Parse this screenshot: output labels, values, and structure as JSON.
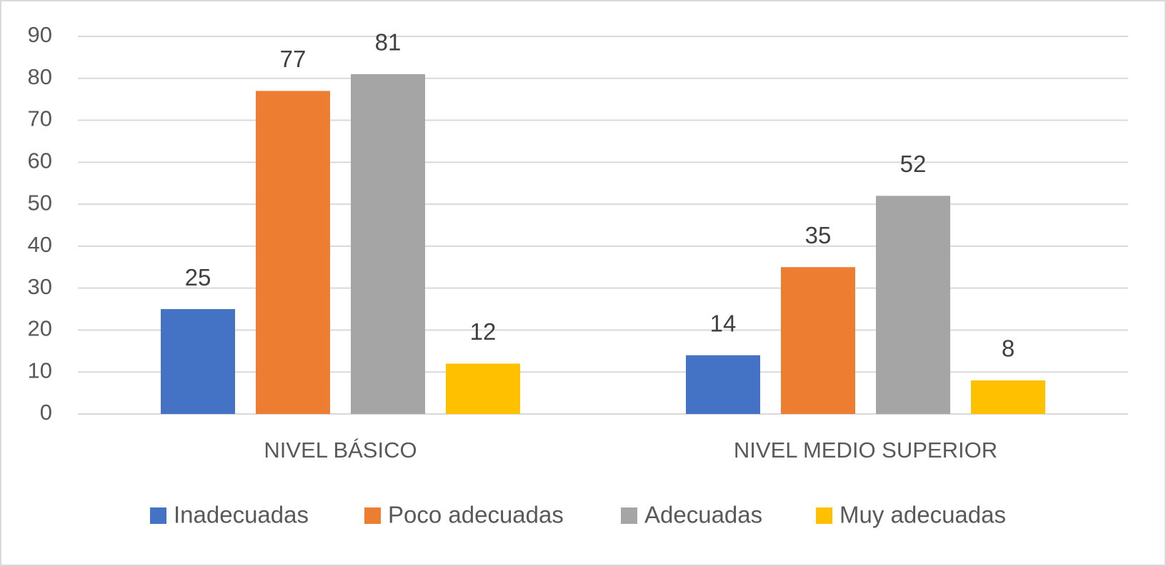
{
  "chart_data": {
    "type": "bar",
    "categories": [
      "NIVEL BÁSICO",
      "NIVEL MEDIO SUPERIOR"
    ],
    "series": [
      {
        "name": "Inadecuadas",
        "color": "#4472c4",
        "values": [
          25,
          14
        ]
      },
      {
        "name": "Poco adecuadas",
        "color": "#ed7d31",
        "values": [
          77,
          35
        ]
      },
      {
        "name": "Adecuadas",
        "color": "#a5a5a5",
        "values": [
          81,
          52
        ]
      },
      {
        "name": "Muy adecuadas",
        "color": "#ffc000",
        "values": [
          12,
          8
        ]
      }
    ],
    "ylim": [
      0,
      90
    ],
    "yticks": [
      0,
      10,
      20,
      30,
      40,
      50,
      60,
      70,
      80,
      90
    ],
    "grid": true,
    "legend": "bottom"
  }
}
